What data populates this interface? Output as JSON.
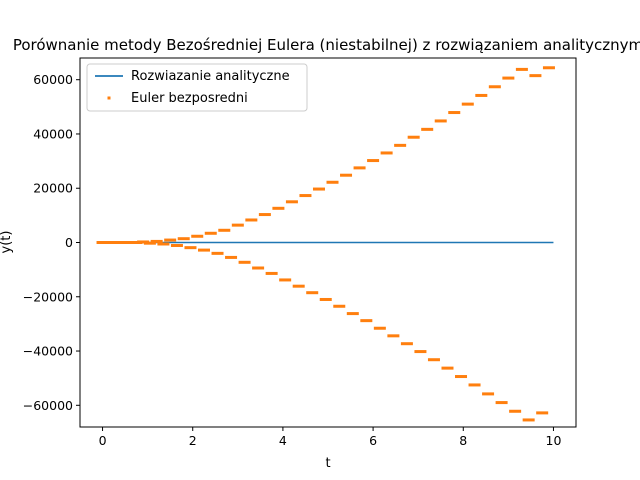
{
  "chart_data": {
    "type": "line",
    "title": "Porównanie metody Bezośredniej Eulera (niestabilnej) z rozwiązaniem analitycznym",
    "xlabel": "t",
    "ylabel": "y(t)",
    "xlim": [
      -0.5,
      10.5
    ],
    "ylim": [
      -68000,
      68000
    ],
    "xticks": [
      0,
      2,
      4,
      6,
      8,
      10
    ],
    "yticks": [
      -60000,
      -40000,
      -20000,
      0,
      20000,
      40000,
      60000
    ],
    "grid": false,
    "legend_position": "upper-left",
    "series": [
      {
        "name": "Rozwiazanie analityczne",
        "kind": "line",
        "color": "#1f77b4",
        "x": [
          0,
          10
        ],
        "y": [
          0,
          0
        ]
      },
      {
        "name": "Euler bezposredni",
        "kind": "points",
        "color": "#ff7f0e",
        "x": [
          0.0,
          0.15,
          0.3,
          0.45,
          0.6,
          0.75,
          0.9,
          1.05,
          1.2,
          1.35,
          1.5,
          1.65,
          1.8,
          1.95,
          2.1,
          2.25,
          2.4,
          2.55,
          2.7,
          2.85,
          3.0,
          3.15,
          3.3,
          3.45,
          3.6,
          3.75,
          3.9,
          4.05,
          4.2,
          4.35,
          4.5,
          4.65,
          4.8,
          4.95,
          5.1,
          5.25,
          5.4,
          5.55,
          5.7,
          5.85,
          6.0,
          6.15,
          6.3,
          6.45,
          6.6,
          6.75,
          6.9,
          7.05,
          7.2,
          7.35,
          7.5,
          7.65,
          7.8,
          7.95,
          8.1,
          8.25,
          8.4,
          8.55,
          8.7,
          8.85,
          9.0,
          9.15,
          9.3,
          9.45,
          9.6,
          9.75,
          9.9
        ],
        "y": [
          0,
          0,
          0,
          0,
          0,
          0,
          200,
          -250,
          400,
          -550,
          900,
          -1100,
          1400,
          -1900,
          2300,
          -2800,
          3400,
          -4000,
          4500,
          -5500,
          6400,
          -7300,
          8300,
          -9400,
          10300,
          -11400,
          12600,
          -13800,
          15000,
          -16100,
          17300,
          -18500,
          19700,
          -21000,
          22200,
          -23500,
          24800,
          -26200,
          27500,
          -28800,
          30200,
          -31600,
          33000,
          -34400,
          35800,
          -37300,
          38800,
          -40200,
          41700,
          -43200,
          44800,
          -46300,
          47900,
          -49400,
          51000,
          -52500,
          54200,
          -55800,
          57400,
          -59000,
          60600,
          -62200,
          63800,
          -65400,
          61500,
          -62800,
          64400
        ]
      }
    ]
  }
}
